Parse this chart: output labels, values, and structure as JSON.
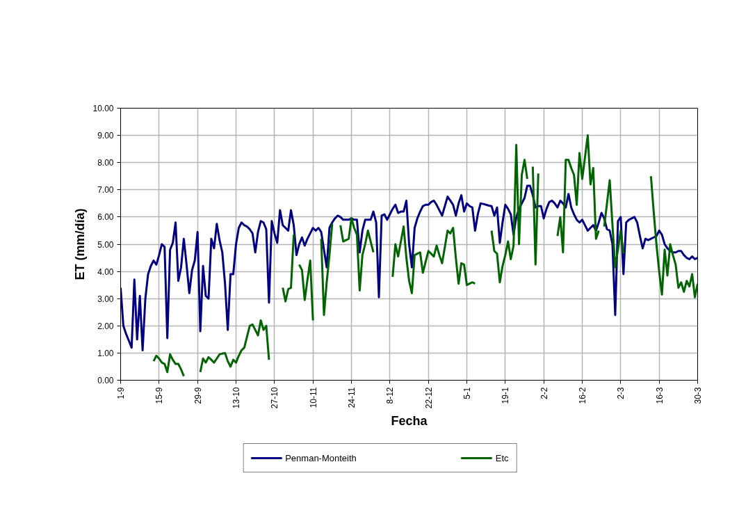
{
  "chart_data": {
    "type": "line",
    "xlabel": "Fecha",
    "ylabel": "ET (mm/día)",
    "categories": [
      "1-9",
      null,
      null,
      null,
      null,
      null,
      null,
      null,
      null,
      null,
      null,
      null,
      null,
      null,
      "15-9",
      null,
      null,
      null,
      null,
      null,
      null,
      null,
      null,
      null,
      null,
      null,
      null,
      null,
      "29-9",
      null,
      null,
      null,
      null,
      null,
      null,
      null,
      null,
      null,
      null,
      null,
      null,
      null,
      "13-10",
      null,
      null,
      null,
      null,
      null,
      null,
      null,
      null,
      null,
      null,
      null,
      null,
      null,
      "27-10",
      null,
      null,
      null,
      null,
      null,
      null,
      null,
      null,
      null,
      null,
      null,
      null,
      null,
      "10-11",
      null,
      null,
      null,
      null,
      null,
      null,
      null,
      null,
      null,
      null,
      null,
      null,
      null,
      "24-11",
      null,
      null,
      null,
      null,
      null,
      null,
      null,
      null,
      null,
      null,
      null,
      null,
      null,
      "8-12",
      null,
      null,
      null,
      null,
      null,
      null,
      null,
      null,
      null,
      null,
      null,
      null,
      null,
      "22-12",
      null,
      null,
      null,
      null,
      null,
      null,
      null,
      null,
      null,
      null,
      null,
      null,
      null,
      "5-1",
      null,
      null,
      null,
      null,
      null,
      null,
      null,
      null,
      null,
      null,
      null,
      null,
      null,
      "19-1",
      null,
      null,
      null,
      null,
      null,
      null,
      null,
      null,
      null,
      null,
      null,
      null,
      null,
      "2-2",
      null,
      null,
      null,
      null,
      null,
      null,
      null,
      null,
      null,
      null,
      null,
      null,
      null,
      "16-2",
      null,
      null,
      null,
      null,
      null,
      null,
      null,
      null,
      null,
      null,
      null,
      null,
      null,
      "2-3",
      null,
      null,
      null,
      null,
      null,
      null,
      null,
      null,
      null,
      null,
      null,
      null,
      null,
      "16-3",
      null,
      null,
      null,
      null,
      null,
      null,
      null,
      null,
      null,
      null,
      null,
      null,
      null,
      "30-3"
    ],
    "ylim": [
      0,
      10
    ],
    "yticks": [
      {
        "value": 0,
        "label": "0.00"
      },
      {
        "value": 1,
        "label": "1.00"
      },
      {
        "value": 2,
        "label": "2.00"
      },
      {
        "value": 3,
        "label": "3.00"
      },
      {
        "value": 4,
        "label": "4.00"
      },
      {
        "value": 5,
        "label": "5.00"
      },
      {
        "value": 6,
        "label": "6.00"
      },
      {
        "value": 7,
        "label": "7.00"
      },
      {
        "value": 8,
        "label": "8.00"
      },
      {
        "value": 9,
        "label": "9.00"
      },
      {
        "value": 10,
        "label": "10.00"
      }
    ],
    "grid": true,
    "legend": "bottom",
    "marker": "none",
    "line_style": "solid",
    "series": [
      {
        "name": "Penman-Monteith",
        "color": "#000080",
        "values": [
          3.4,
          2.0,
          1.7,
          1.45,
          1.2,
          3.7,
          1.5,
          3.1,
          1.1,
          3.0,
          3.9,
          4.2,
          4.4,
          4.25,
          4.6,
          5.0,
          4.9,
          1.55,
          4.8,
          5.05,
          5.8,
          3.65,
          4.15,
          5.2,
          4.25,
          3.2,
          4.05,
          4.4,
          5.45,
          1.8,
          4.2,
          3.1,
          3.0,
          5.2,
          4.85,
          5.75,
          5.15,
          4.7,
          3.55,
          1.85,
          3.9,
          3.9,
          5.0,
          5.6,
          5.8,
          5.7,
          5.65,
          5.55,
          5.4,
          4.7,
          5.45,
          5.85,
          5.8,
          5.55,
          2.85,
          5.85,
          5.4,
          5.05,
          6.25,
          5.7,
          5.6,
          5.5,
          6.25,
          5.7,
          4.6,
          5.0,
          5.25,
          4.95,
          5.2,
          5.4,
          5.6,
          5.5,
          5.6,
          5.45,
          4.8,
          4.15,
          5.6,
          5.8,
          5.95,
          6.05,
          6.0,
          5.9,
          5.9,
          5.9,
          5.95,
          5.9,
          5.9,
          4.7,
          5.5,
          5.9,
          5.9,
          5.9,
          6.2,
          5.8,
          3.05,
          6.05,
          6.1,
          5.9,
          6.1,
          6.3,
          6.45,
          6.15,
          6.2,
          6.2,
          6.6,
          5.0,
          4.15,
          5.6,
          5.95,
          6.2,
          6.4,
          6.45,
          6.45,
          6.55,
          6.6,
          6.45,
          6.25,
          6.05,
          6.4,
          6.75,
          6.6,
          6.45,
          6.05,
          6.5,
          6.8,
          6.2,
          6.5,
          6.4,
          6.35,
          5.5,
          6.1,
          6.5,
          6.48,
          6.45,
          6.42,
          6.4,
          6.05,
          6.35,
          5.05,
          5.8,
          6.45,
          6.3,
          6.1,
          5.35,
          6.0,
          6.3,
          6.5,
          6.7,
          7.15,
          7.15,
          6.8,
          6.35,
          6.4,
          6.4,
          5.95,
          6.3,
          6.55,
          6.6,
          6.5,
          6.35,
          6.6,
          6.5,
          6.35,
          6.85,
          6.35,
          6.1,
          5.9,
          5.8,
          5.9,
          5.7,
          5.5,
          5.6,
          5.7,
          5.5,
          5.8,
          6.15,
          5.95,
          5.55,
          5.5,
          5.0,
          2.4,
          5.85,
          6.0,
          3.9,
          5.8,
          5.9,
          5.95,
          6.0,
          5.8,
          5.3,
          4.85,
          5.2,
          5.15,
          5.2,
          5.25,
          5.3,
          5.5,
          5.35,
          5.0,
          4.85,
          4.75,
          4.7,
          4.7,
          4.75,
          4.75,
          4.6,
          4.5,
          4.45,
          4.55,
          4.45,
          4.5
        ]
      },
      {
        "name": "Etc",
        "color": "#006400",
        "values": [
          null,
          null,
          null,
          null,
          null,
          null,
          null,
          null,
          null,
          null,
          null,
          null,
          0.7,
          0.9,
          0.8,
          0.65,
          0.6,
          0.3,
          0.95,
          0.75,
          0.6,
          0.6,
          0.4,
          0.15,
          null,
          null,
          null,
          null,
          null,
          0.3,
          0.8,
          0.65,
          0.85,
          0.75,
          0.65,
          0.8,
          0.95,
          0.98,
          1.0,
          0.7,
          0.5,
          0.75,
          0.65,
          0.9,
          1.1,
          1.2,
          1.6,
          2.0,
          2.05,
          1.85,
          1.65,
          2.2,
          1.85,
          2.0,
          0.75,
          null,
          null,
          null,
          null,
          3.4,
          2.9,
          3.35,
          3.4,
          5.35,
          null,
          4.25,
          4.05,
          2.95,
          3.7,
          4.4,
          2.2,
          null,
          null,
          5.2,
          2.4,
          3.6,
          4.6,
          5.75,
          null,
          null,
          5.7,
          5.1,
          5.15,
          5.2,
          5.95,
          5.6,
          5.35,
          3.3,
          4.6,
          5.0,
          5.5,
          5.1,
          4.7,
          null,
          null,
          null,
          null,
          null,
          null,
          3.8,
          5.0,
          4.55,
          5.1,
          5.65,
          4.5,
          3.65,
          3.2,
          4.6,
          4.65,
          4.7,
          3.95,
          4.35,
          4.75,
          4.65,
          4.55,
          4.95,
          4.6,
          4.3,
          4.9,
          5.5,
          5.4,
          5.6,
          4.5,
          3.55,
          4.3,
          4.25,
          3.5,
          3.55,
          3.6,
          3.55,
          null,
          null,
          null,
          null,
          null,
          5.5,
          4.75,
          4.65,
          3.6,
          4.2,
          4.6,
          5.1,
          4.45,
          4.95,
          8.65,
          5.0,
          7.55,
          8.1,
          7.4,
          null,
          7.85,
          4.25,
          7.6,
          null,
          null,
          null,
          null,
          null,
          null,
          5.3,
          6.0,
          4.7,
          8.1,
          8.1,
          7.8,
          7.55,
          6.45,
          8.35,
          7.4,
          8.2,
          9.0,
          7.2,
          7.8,
          5.2,
          5.5,
          null,
          5.65,
          6.5,
          7.35,
          5.7,
          4.15,
          4.8,
          5.5,
          4.65,
          null,
          null,
          null,
          null,
          null,
          null,
          null,
          null,
          null,
          7.5,
          6.2,
          5.0,
          4.0,
          3.15,
          4.8,
          3.85,
          5.0,
          4.6,
          4.25,
          3.4,
          3.6,
          3.25,
          3.65,
          3.45,
          3.9,
          3.05,
          3.55
        ]
      }
    ]
  }
}
